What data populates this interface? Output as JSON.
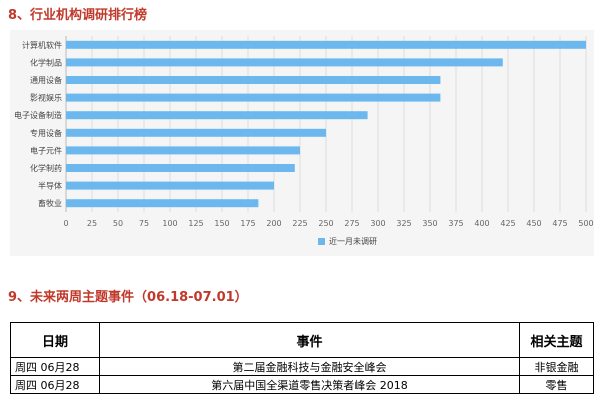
{
  "sections": {
    "research_rank_title": "8、行业机构调研排行榜",
    "events_title": "9、未来两周主题事件（06.18-07.01）"
  },
  "chart_data": {
    "type": "bar",
    "orientation": "horizontal",
    "categories": [
      "计算机软件",
      "化学制品",
      "通用设备",
      "影视娱乐",
      "电子设备制造",
      "专用设备",
      "电子元件",
      "化学制药",
      "半导体",
      "畜牧业"
    ],
    "series": [
      {
        "name": "近一月未调研",
        "values": [
          500,
          420,
          360,
          360,
          290,
          250,
          225,
          220,
          200,
          185
        ],
        "color": "#6cb8ee"
      }
    ],
    "xlim": [
      0,
      500
    ],
    "xticks": [
      0,
      25,
      50,
      75,
      100,
      125,
      150,
      175,
      200,
      225,
      250,
      275,
      300,
      325,
      350,
      375,
      400,
      425,
      450,
      475,
      500
    ],
    "grid": "vertical",
    "legend_position": "bottom-center",
    "background": "#f5f5f5"
  },
  "events_table": {
    "headers": [
      "日期",
      "事件",
      "相关主题"
    ],
    "rows": [
      {
        "date": "周四  06月28",
        "event": "第二届金融科技与金融安全峰会",
        "topic": "非银金融"
      },
      {
        "date": "周四  06月28",
        "event": "第六届中国全渠道零售决策者峰会 2018",
        "topic": "零售"
      }
    ]
  },
  "colors": {
    "heading": "#c0392b",
    "bar": "#6cb8ee"
  }
}
